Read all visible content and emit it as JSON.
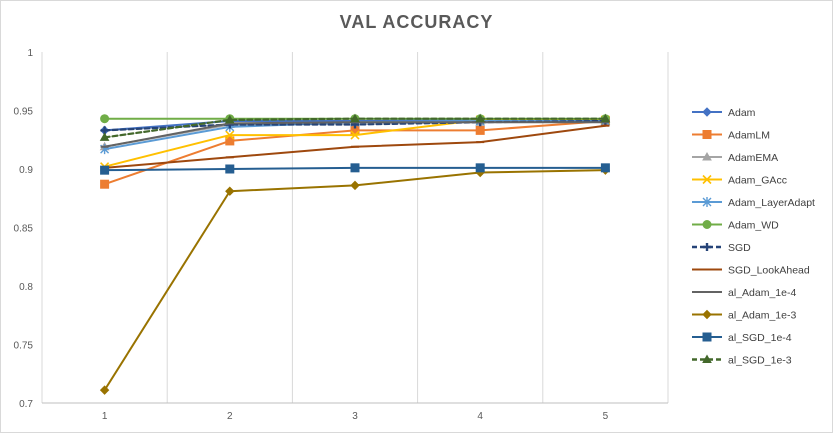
{
  "chart_data": {
    "type": "line",
    "title": "VAL ACCURACY",
    "xlabel": "",
    "ylabel": "",
    "categories": [
      "1",
      "2",
      "3",
      "4",
      "5"
    ],
    "y_ticks": [
      "0.7",
      "0.75",
      "0.8",
      "0.85",
      "0.9",
      "0.95",
      "1"
    ],
    "ylim": [
      0.7,
      1.0
    ],
    "grid": "vertical",
    "legend_position": "right",
    "series": [
      {
        "name": "Adam",
        "color": "#4472C4",
        "marker": "diamond",
        "dash": false,
        "values": [
          0.933,
          0.941,
          0.941,
          0.942,
          0.942
        ]
      },
      {
        "name": "AdamLM",
        "color": "#ED7D31",
        "marker": "square",
        "dash": false,
        "values": [
          0.887,
          0.924,
          0.933,
          0.933,
          0.941
        ]
      },
      {
        "name": "AdamEMA",
        "color": "#A5A5A5",
        "marker": "triangle",
        "dash": false,
        "values": [
          0.919,
          0.938,
          0.94,
          0.94,
          0.941
        ]
      },
      {
        "name": "Adam_GAcc",
        "color": "#FFC000",
        "marker": "x",
        "dash": false,
        "values": [
          0.902,
          0.929,
          0.929,
          0.942,
          0.942
        ]
      },
      {
        "name": "Adam_LayerAdapt",
        "color": "#5B9BD5",
        "marker": "star",
        "dash": false,
        "values": [
          0.917,
          0.936,
          0.94,
          0.941,
          0.941
        ]
      },
      {
        "name": "Adam_WD",
        "color": "#70AD47",
        "marker": "circle",
        "dash": false,
        "values": [
          0.943,
          0.943,
          0.943,
          0.943,
          0.943
        ]
      },
      {
        "name": "SGD",
        "color": "#264478",
        "marker": "plus",
        "dash": true,
        "values": [
          0.933,
          0.938,
          0.938,
          0.94,
          0.941
        ]
      },
      {
        "name": "SGD_LookAhead",
        "color": "#9E480E",
        "marker": "dash",
        "dash": false,
        "values": [
          0.901,
          0.91,
          0.919,
          0.923,
          0.937
        ]
      },
      {
        "name": "al_Adam_1e-4",
        "color": "#636363",
        "marker": "dash",
        "dash": false,
        "values": [
          0.919,
          0.939,
          0.94,
          0.94,
          0.94
        ]
      },
      {
        "name": "al_Adam_1e-3",
        "color": "#997300",
        "marker": "diamond",
        "dash": false,
        "values": [
          0.711,
          0.881,
          0.886,
          0.897,
          0.899
        ]
      },
      {
        "name": "al_SGD_1e-4",
        "color": "#255E91",
        "marker": "square",
        "dash": false,
        "values": [
          0.899,
          0.9,
          0.901,
          0.901,
          0.901
        ]
      },
      {
        "name": "al_SGD_1e-3",
        "color": "#43682B",
        "marker": "triangle",
        "dash": true,
        "values": [
          0.927,
          0.942,
          0.943,
          0.943,
          0.943
        ]
      }
    ]
  }
}
